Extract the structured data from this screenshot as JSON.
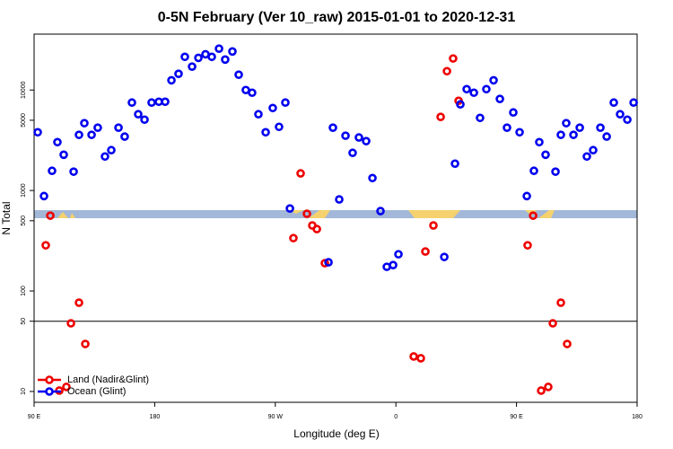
{
  "chart_data": {
    "type": "scatter",
    "title": "0-5N February (Ver 10_raw)   2015-01-01 to 2020-12-31",
    "x_label": "Longitude (deg E)",
    "y_label": "N Total",
    "ylog": true,
    "legend": "bottom-left",
    "xlim": [
      90,
      540
    ],
    "xticks": [
      {
        "value": 90,
        "label": "90 E"
      },
      180,
      {
        "value": 270,
        "label": "90 W"
      },
      {
        "value": 360,
        "label": "0"
      },
      {
        "value": 450,
        "label": "90 E"
      },
      {
        "value": 540,
        "label": "180"
      }
    ],
    "ylim": [
      7.8,
      36000
    ],
    "yticks": [
      10,
      50,
      100,
      500,
      1000,
      5000,
      10000
    ],
    "hlines": [
      50
    ],
    "series": [
      {
        "name": "Land (Nadir&Glint)",
        "color": "#ee0000",
        "x": [
          98.7,
          102.1,
          108.8,
          114.1,
          117.5,
          123.5,
          128.2,
          283.5,
          288.9,
          293.6,
          297.6,
          301.0,
          307.0,
          373.3,
          378.6,
          382.0,
          388.0,
          393.4,
          398.1,
          402.7,
          406.8,
          458.3,
          462.4,
          468.4,
          473.7,
          477.1,
          483.1,
          487.8
        ],
        "values": [
          285,
          562,
          10.2,
          11.1,
          47.7,
          76.5,
          29.7,
          336,
          1480,
          586,
          449,
          413,
          189,
          22.3,
          21.4,
          247,
          449,
          5400,
          15400,
          20600,
          7810,
          285,
          562,
          10.2,
          11.1,
          47.7,
          76.5,
          29.7
        ]
      },
      {
        "name": "Ocean (Glint)",
        "color": "#0000ee",
        "x": [
          92.7,
          97.4,
          103.4,
          107.4,
          112.1,
          119.5,
          123.5,
          127.5,
          132.9,
          137.5,
          142.9,
          147.6,
          153.0,
          157.6,
          163.0,
          167.7,
          172.4,
          177.7,
          183.1,
          187.8,
          192.5,
          197.8,
          202.5,
          207.9,
          212.6,
          217.9,
          222.6,
          228.0,
          232.6,
          238.0,
          242.7,
          248.0,
          252.7,
          257.4,
          262.8,
          268.1,
          272.8,
          277.5,
          280.9,
          309.7,
          313.0,
          317.7,
          322.4,
          327.7,
          332.4,
          337.8,
          342.5,
          348.5,
          353.2,
          357.9,
          361.9,
          396.1,
          404.1,
          408.1,
          412.8,
          418.2,
          422.8,
          427.5,
          432.9,
          437.6,
          442.9,
          447.6,
          452.3,
          457.7,
          463.0,
          467.0,
          471.7,
          479.1,
          483.1,
          487.1,
          492.5,
          497.2,
          502.5,
          507.2,
          512.6,
          517.3,
          522.6,
          527.3,
          532.7,
          537.4
        ],
        "values": [
          3800,
          880,
          1570,
          3030,
          2270,
          1540,
          3580,
          4680,
          3580,
          4220,
          2180,
          2520,
          4220,
          3440,
          7500,
          5740,
          5070,
          7500,
          7650,
          7650,
          12500,
          14500,
          21400,
          17100,
          20900,
          22700,
          21400,
          25800,
          20100,
          24200,
          14200,
          10000,
          9400,
          5740,
          3800,
          6620,
          4300,
          7500,
          662,
          193,
          4220,
          815,
          3510,
          2370,
          3370,
          3100,
          1330,
          624,
          174,
          181,
          232,
          218,
          1850,
          7200,
          10200,
          9400,
          5280,
          10200,
          12500,
          8150,
          4220,
          5980,
          3800,
          880,
          1570,
          3030,
          2270,
          1540,
          3580,
          4680,
          3580,
          4220,
          2180,
          2520,
          4220,
          3440,
          7500,
          5740,
          5070,
          7500
        ]
      }
    ]
  }
}
